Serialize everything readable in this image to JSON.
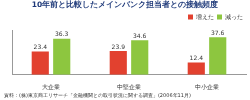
{
  "chart_data": {
    "type": "bar",
    "title": "10年前と比較したメインバンク担当者との接触頻度",
    "source": "資料：(株)東京商工リサーチ「金融機関との取引状況に関する調査」(2006年11月)",
    "categories": [
      "大企業",
      "中堅企業",
      "中小企業"
    ],
    "series": [
      {
        "name": "増えた",
        "color": "#e2412f",
        "values": [
          23.4,
          23.9,
          12.4
        ]
      },
      {
        "name": "減った",
        "color": "#8dc63f",
        "values": [
          36.3,
          34.6,
          37.6
        ]
      }
    ],
    "ylim": [
      0,
      45
    ],
    "grid": false,
    "legend": "top-right",
    "data_labels": true,
    "tick_labels": "x"
  }
}
